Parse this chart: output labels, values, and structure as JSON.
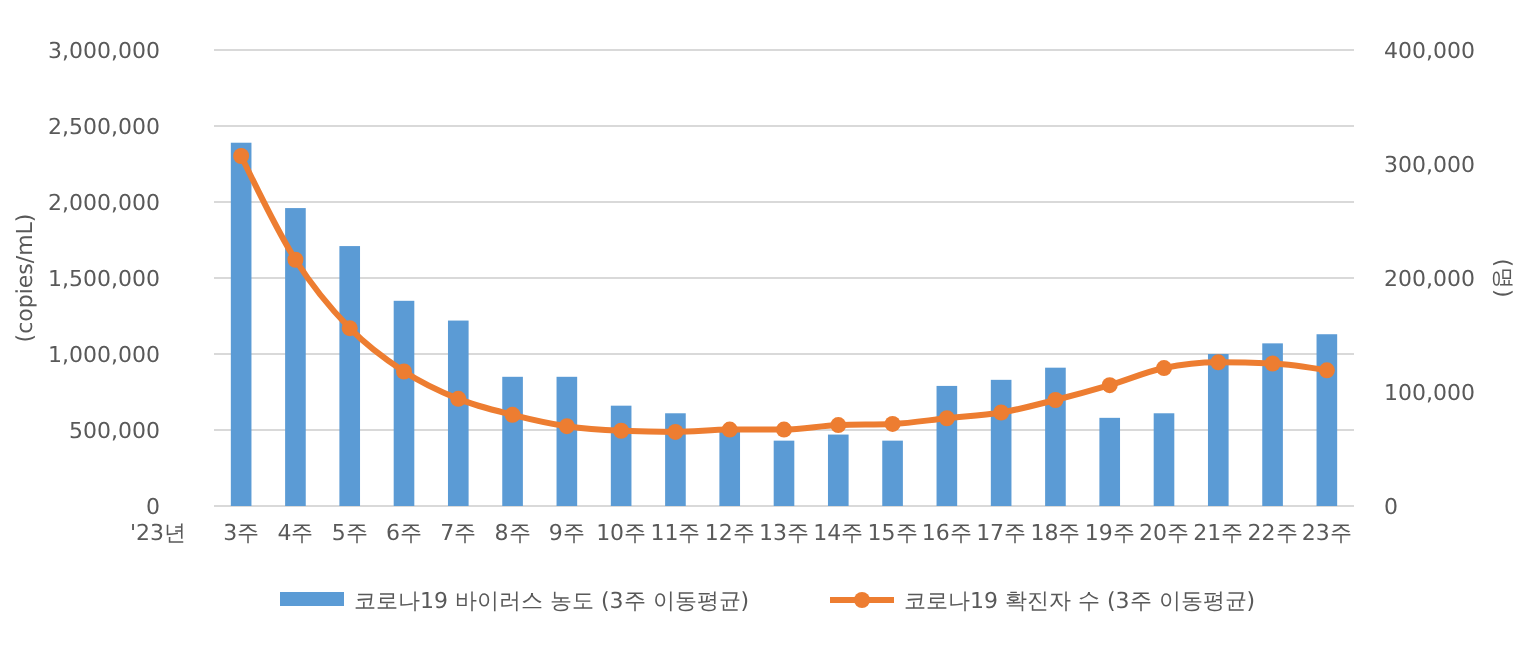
{
  "chart_data": {
    "type": "bar",
    "xlabel": "'23년",
    "ylabel": "(copies/mL)",
    "y2label": "(명)",
    "categories": [
      "3주",
      "4주",
      "5주",
      "6주",
      "7주",
      "8주",
      "9주",
      "10주",
      "11주",
      "12주",
      "13주",
      "14주",
      "15주",
      "16주",
      "17주",
      "18주",
      "19주",
      "20주",
      "21주",
      "22주",
      "23주"
    ],
    "series": [
      {
        "name": "코로나19 바이러스 농도 (3주 이동평균)",
        "color": "#5b9bd5",
        "values": [
          2390000,
          1960000,
          1710000,
          1350000,
          1220000,
          850000,
          850000,
          660000,
          610000,
          500000,
          430000,
          470000,
          430000,
          790000,
          830000,
          910000,
          580000,
          610000,
          1000000,
          1070000,
          1130000
        ]
      },
      {
        "name": "코로나19 확진자 수 (3주 이동평균)",
        "type": "line",
        "axis": "y2",
        "color": "#ed7d31",
        "marker": "circle",
        "values": [
          307000,
          216000,
          156000,
          118000,
          94000,
          80000,
          70000,
          66000,
          65000,
          67000,
          67000,
          71000,
          72000,
          77000,
          82000,
          93000,
          106000,
          121000,
          126000,
          125000,
          119000
        ]
      }
    ],
    "ylim": [
      0,
      3000000
    ],
    "yticks": [
      {
        "value": 0,
        "label": "0"
      },
      {
        "value": 500000,
        "label": "500,000"
      },
      {
        "value": 1000000,
        "label": "1,000,000"
      },
      {
        "value": 1500000,
        "label": "1,500,000"
      },
      {
        "value": 2000000,
        "label": "2,000,000"
      },
      {
        "value": 2500000,
        "label": "2,500,000"
      },
      {
        "value": 3000000,
        "label": "3,000,000"
      }
    ],
    "y2lim": [
      0,
      400000
    ],
    "y2ticks": [
      {
        "value": 0,
        "label": "0"
      },
      {
        "value": 100000,
        "label": "100,000"
      },
      {
        "value": 200000,
        "label": "200,000"
      },
      {
        "value": 300000,
        "label": "300,000"
      },
      {
        "value": 400000,
        "label": "400,000"
      }
    ],
    "grid": "y",
    "legend": "bottom"
  }
}
